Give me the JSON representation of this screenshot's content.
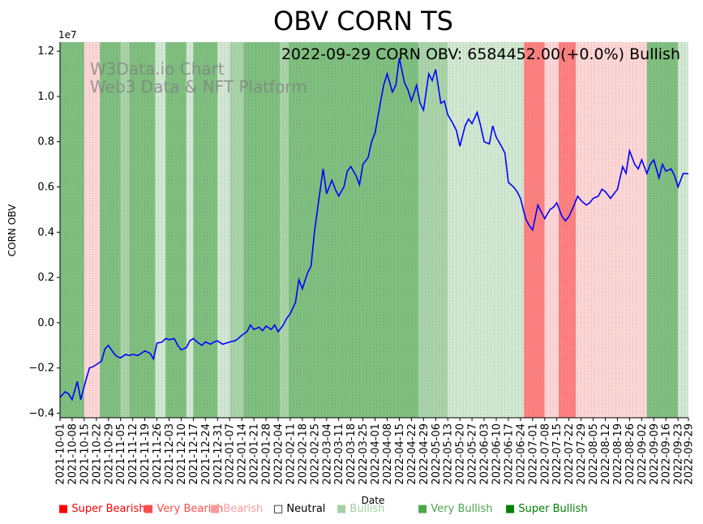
{
  "chart_data": {
    "type": "line",
    "title": "OBV CORN TS",
    "annotation": "2022-09-29 CORN OBV: 6584452.00(+0.0%) Bullish",
    "watermark": [
      "W3Data.io Chart",
      "Web3 Data & NFT Platform"
    ],
    "xlabel": "Date",
    "ylabel": "CORN OBV",
    "y_scale_label": "1e7",
    "ylim": [
      -4200000,
      12400000
    ],
    "y_ticks": [
      -4000000,
      -2000000,
      0,
      2000000,
      4000000,
      6000000,
      8000000,
      10000000,
      12000000
    ],
    "y_tick_labels": [
      "−0.4",
      "−0.2",
      "0.0",
      "0.2",
      "0.4",
      "0.6",
      "0.8",
      "1.0",
      "1.2"
    ],
    "x_start": "2021-10-01",
    "x_end": "2022-09-29",
    "x_tick_labels": [
      "2021-10-01",
      "2021-10-08",
      "2021-10-15",
      "2021-10-22",
      "2021-10-29",
      "2021-11-05",
      "2021-11-12",
      "2021-11-19",
      "2021-11-26",
      "2021-12-03",
      "2021-12-10",
      "2021-12-17",
      "2021-12-24",
      "2021-12-31",
      "2022-01-07",
      "2022-01-14",
      "2022-01-21",
      "2022-01-28",
      "2022-02-04",
      "2022-02-11",
      "2022-02-18",
      "2022-02-25",
      "2022-03-04",
      "2022-03-11",
      "2022-03-18",
      "2022-03-25",
      "2022-04-01",
      "2022-04-08",
      "2022-04-15",
      "2022-04-22",
      "2022-04-29",
      "2022-05-06",
      "2022-05-13",
      "2022-05-20",
      "2022-05-27",
      "2022-06-03",
      "2022-06-10",
      "2022-06-17",
      "2022-06-24",
      "2022-07-01",
      "2022-07-08",
      "2022-07-15",
      "2022-07-22",
      "2022-07-29",
      "2022-08-05",
      "2022-08-12",
      "2022-08-19",
      "2022-08-26",
      "2022-09-02",
      "2022-09-09",
      "2022-09-16",
      "2022-09-23",
      "2022-09-29"
    ],
    "grid": "vertical dotted",
    "series": [
      {
        "color": "#0000ff",
        "points": [
          [
            "2021-10-01",
            -3300000
          ],
          [
            "2021-10-04",
            -3050000
          ],
          [
            "2021-10-06",
            -3150000
          ],
          [
            "2021-10-08",
            -3400000
          ],
          [
            "2021-10-11",
            -2600000
          ],
          [
            "2021-10-13",
            -3400000
          ],
          [
            "2021-10-15",
            -2800000
          ],
          [
            "2021-10-18",
            -2000000
          ],
          [
            "2021-10-20",
            -1950000
          ],
          [
            "2021-10-22",
            -1850000
          ],
          [
            "2021-10-25",
            -1700000
          ],
          [
            "2021-10-27",
            -1150000
          ],
          [
            "2021-10-29",
            -1000000
          ],
          [
            "2021-11-01",
            -1350000
          ],
          [
            "2021-11-03",
            -1500000
          ],
          [
            "2021-11-05",
            -1550000
          ],
          [
            "2021-11-08",
            -1400000
          ],
          [
            "2021-11-10",
            -1450000
          ],
          [
            "2021-11-12",
            -1400000
          ],
          [
            "2021-11-15",
            -1450000
          ],
          [
            "2021-11-17",
            -1350000
          ],
          [
            "2021-11-19",
            -1250000
          ],
          [
            "2021-11-22",
            -1350000
          ],
          [
            "2021-11-24",
            -1600000
          ],
          [
            "2021-11-26",
            -900000
          ],
          [
            "2021-11-29",
            -850000
          ],
          [
            "2021-12-01",
            -700000
          ],
          [
            "2021-12-03",
            -750000
          ],
          [
            "2021-12-06",
            -700000
          ],
          [
            "2021-12-08",
            -1000000
          ],
          [
            "2021-12-10",
            -1200000
          ],
          [
            "2021-12-13",
            -1100000
          ],
          [
            "2021-12-15",
            -800000
          ],
          [
            "2021-12-17",
            -700000
          ],
          [
            "2021-12-20",
            -900000
          ],
          [
            "2021-12-22",
            -1000000
          ],
          [
            "2021-12-24",
            -850000
          ],
          [
            "2021-12-27",
            -950000
          ],
          [
            "2021-12-29",
            -850000
          ],
          [
            "2021-12-31",
            -800000
          ],
          [
            "2022-01-03",
            -950000
          ],
          [
            "2022-01-05",
            -900000
          ],
          [
            "2022-01-07",
            -850000
          ],
          [
            "2022-01-10",
            -800000
          ],
          [
            "2022-01-12",
            -700000
          ],
          [
            "2022-01-14",
            -550000
          ],
          [
            "2022-01-17",
            -400000
          ],
          [
            "2022-01-19",
            -100000
          ],
          [
            "2022-01-21",
            -300000
          ],
          [
            "2022-01-24",
            -200000
          ],
          [
            "2022-01-26",
            -350000
          ],
          [
            "2022-01-28",
            -150000
          ],
          [
            "2022-01-31",
            -300000
          ],
          [
            "2022-02-02",
            -100000
          ],
          [
            "2022-02-04",
            -400000
          ],
          [
            "2022-02-07",
            -100000
          ],
          [
            "2022-02-09",
            200000
          ],
          [
            "2022-02-11",
            400000
          ],
          [
            "2022-02-14",
            900000
          ],
          [
            "2022-02-16",
            1900000
          ],
          [
            "2022-02-18",
            1500000
          ],
          [
            "2022-02-21",
            2200000
          ],
          [
            "2022-02-23",
            2500000
          ],
          [
            "2022-02-25",
            4000000
          ],
          [
            "2022-02-28",
            5700000
          ],
          [
            "2022-03-02",
            6800000
          ],
          [
            "2022-03-04",
            5700000
          ],
          [
            "2022-03-07",
            6300000
          ],
          [
            "2022-03-09",
            5900000
          ],
          [
            "2022-03-11",
            5600000
          ],
          [
            "2022-03-14",
            6000000
          ],
          [
            "2022-03-16",
            6700000
          ],
          [
            "2022-03-18",
            6900000
          ],
          [
            "2022-03-21",
            6500000
          ],
          [
            "2022-03-23",
            6100000
          ],
          [
            "2022-03-25",
            7000000
          ],
          [
            "2022-03-28",
            7300000
          ],
          [
            "2022-03-30",
            8000000
          ],
          [
            "2022-04-01",
            8400000
          ],
          [
            "2022-04-04",
            9700000
          ],
          [
            "2022-04-06",
            10500000
          ],
          [
            "2022-04-08",
            11000000
          ],
          [
            "2022-04-11",
            10200000
          ],
          [
            "2022-04-13",
            10500000
          ],
          [
            "2022-04-15",
            11700000
          ],
          [
            "2022-04-18",
            10600000
          ],
          [
            "2022-04-20",
            10300000
          ],
          [
            "2022-04-22",
            9800000
          ],
          [
            "2022-04-25",
            10500000
          ],
          [
            "2022-04-27",
            9700000
          ],
          [
            "2022-04-29",
            9400000
          ],
          [
            "2022-05-02",
            11000000
          ],
          [
            "2022-05-04",
            10700000
          ],
          [
            "2022-05-06",
            11200000
          ],
          [
            "2022-05-09",
            9700000
          ],
          [
            "2022-05-11",
            9800000
          ],
          [
            "2022-05-13",
            9200000
          ],
          [
            "2022-05-16",
            8800000
          ],
          [
            "2022-05-18",
            8500000
          ],
          [
            "2022-05-20",
            7800000
          ],
          [
            "2022-05-23",
            8700000
          ],
          [
            "2022-05-25",
            9000000
          ],
          [
            "2022-05-27",
            8800000
          ],
          [
            "2022-05-30",
            9300000
          ],
          [
            "2022-06-01",
            8700000
          ],
          [
            "2022-06-03",
            8000000
          ],
          [
            "2022-06-06",
            7900000
          ],
          [
            "2022-06-08",
            8700000
          ],
          [
            "2022-06-10",
            8200000
          ],
          [
            "2022-06-13",
            7800000
          ],
          [
            "2022-06-15",
            7500000
          ],
          [
            "2022-06-17",
            6200000
          ],
          [
            "2022-06-20",
            6000000
          ],
          [
            "2022-06-22",
            5800000
          ],
          [
            "2022-06-24",
            5500000
          ],
          [
            "2022-06-27",
            4600000
          ],
          [
            "2022-06-29",
            4300000
          ],
          [
            "2022-07-01",
            4100000
          ],
          [
            "2022-07-04",
            5200000
          ],
          [
            "2022-07-06",
            4900000
          ],
          [
            "2022-07-08",
            4600000
          ],
          [
            "2022-07-11",
            5000000
          ],
          [
            "2022-07-13",
            5100000
          ],
          [
            "2022-07-15",
            5300000
          ],
          [
            "2022-07-18",
            4700000
          ],
          [
            "2022-07-20",
            4500000
          ],
          [
            "2022-07-22",
            4700000
          ],
          [
            "2022-07-25",
            5200000
          ],
          [
            "2022-07-27",
            5600000
          ],
          [
            "2022-07-29",
            5400000
          ],
          [
            "2022-08-01",
            5200000
          ],
          [
            "2022-08-03",
            5300000
          ],
          [
            "2022-08-05",
            5500000
          ],
          [
            "2022-08-08",
            5600000
          ],
          [
            "2022-08-10",
            5900000
          ],
          [
            "2022-08-12",
            5800000
          ],
          [
            "2022-08-15",
            5500000
          ],
          [
            "2022-08-17",
            5700000
          ],
          [
            "2022-08-19",
            5900000
          ],
          [
            "2022-08-22",
            6900000
          ],
          [
            "2022-08-24",
            6600000
          ],
          [
            "2022-08-26",
            7600000
          ],
          [
            "2022-08-29",
            7000000
          ],
          [
            "2022-08-31",
            6800000
          ],
          [
            "2022-09-02",
            7200000
          ],
          [
            "2022-09-05",
            6600000
          ],
          [
            "2022-09-07",
            7000000
          ],
          [
            "2022-09-09",
            7200000
          ],
          [
            "2022-09-12",
            6400000
          ],
          [
            "2022-09-14",
            7000000
          ],
          [
            "2022-09-16",
            6700000
          ],
          [
            "2022-09-19",
            6800000
          ],
          [
            "2022-09-21",
            6500000
          ],
          [
            "2022-09-23",
            6000000
          ],
          [
            "2022-09-26",
            6600000
          ],
          [
            "2022-09-29",
            6584452
          ]
        ]
      }
    ],
    "background_regions": [
      {
        "from": "2021-10-01",
        "to": "2021-10-15",
        "category": "very_bullish"
      },
      {
        "from": "2021-10-15",
        "to": "2021-10-24",
        "category": "bearish"
      },
      {
        "from": "2021-10-24",
        "to": "2021-11-05",
        "category": "very_bullish"
      },
      {
        "from": "2021-11-05",
        "to": "2021-11-10",
        "category": "bullish"
      },
      {
        "from": "2021-11-10",
        "to": "2021-11-25",
        "category": "very_bullish"
      },
      {
        "from": "2021-11-25",
        "to": "2021-12-01",
        "category": "bullish_light"
      },
      {
        "from": "2021-12-01",
        "to": "2021-12-13",
        "category": "very_bullish"
      },
      {
        "from": "2021-12-13",
        "to": "2021-12-17",
        "category": "bullish_light"
      },
      {
        "from": "2021-12-17",
        "to": "2021-12-31",
        "category": "very_bullish"
      },
      {
        "from": "2021-12-31",
        "to": "2022-01-07",
        "category": "bullish_light"
      },
      {
        "from": "2022-01-07",
        "to": "2022-01-15",
        "category": "bullish"
      },
      {
        "from": "2022-01-15",
        "to": "2022-02-05",
        "category": "very_bullish"
      },
      {
        "from": "2022-02-05",
        "to": "2022-02-10",
        "category": "bullish"
      },
      {
        "from": "2022-02-10",
        "to": "2022-04-26",
        "category": "very_bullish"
      },
      {
        "from": "2022-04-26",
        "to": "2022-05-13",
        "category": "bullish"
      },
      {
        "from": "2022-05-13",
        "to": "2022-06-26",
        "category": "bullish_light"
      },
      {
        "from": "2022-06-26",
        "to": "2022-07-08",
        "category": "very_bearish"
      },
      {
        "from": "2022-07-08",
        "to": "2022-07-16",
        "category": "bearish"
      },
      {
        "from": "2022-07-16",
        "to": "2022-07-26",
        "category": "very_bearish"
      },
      {
        "from": "2022-07-26",
        "to": "2022-09-05",
        "category": "bearish"
      },
      {
        "from": "2022-09-05",
        "to": "2022-09-23",
        "category": "very_bullish"
      },
      {
        "from": "2022-09-23",
        "to": "2022-09-29",
        "category": "bullish_light"
      }
    ],
    "region_colors": {
      "very_bullish": "#7fbf7f",
      "bullish": "#a9d4a9",
      "bullish_light": "#d2e8d2",
      "bearish": "#ffd6d6",
      "very_bearish": "#ff8080"
    },
    "legend": [
      {
        "label": "Super Bearish",
        "color": "#ff0000"
      },
      {
        "label": "Very Bearish",
        "color": "#ff4c4c"
      },
      {
        "label": "Bearish",
        "color": "#ff9999"
      },
      {
        "label": "Neutral",
        "color": "#000000"
      },
      {
        "label": "Bullish",
        "color": "#a3d1a3"
      },
      {
        "label": "Very Bullish",
        "color": "#4ca64c"
      },
      {
        "label": "Super Bullish",
        "color": "#008000"
      }
    ],
    "legend_placement": "bottom"
  }
}
